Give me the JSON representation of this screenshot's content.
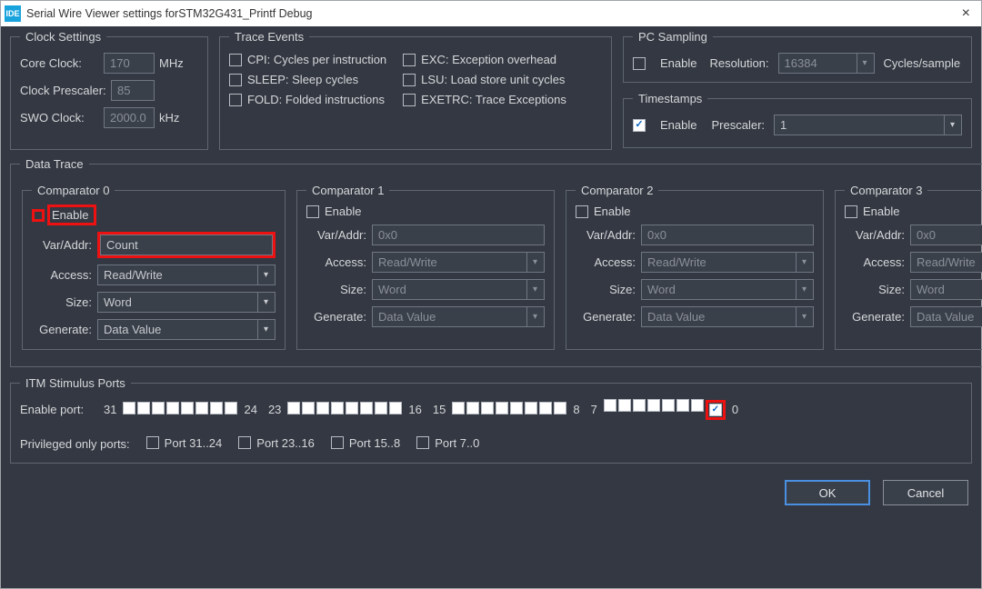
{
  "titlebar": {
    "icon": "IDE",
    "title": "Serial Wire Viewer settings forSTM32G431_Printf Debug"
  },
  "clock": {
    "legend": "Clock Settings",
    "core_label": "Core Clock:",
    "core_value": "170",
    "core_unit": "MHz",
    "presc_label": "Clock Prescaler:",
    "presc_value": "85",
    "swo_label": "SWO Clock:",
    "swo_value": "2000.0",
    "swo_unit": "kHz"
  },
  "trace": {
    "legend": "Trace Events",
    "cpi": "CPI: Cycles per instruction",
    "sleep": "SLEEP: Sleep cycles",
    "fold": "FOLD: Folded instructions",
    "exc": "EXC: Exception overhead",
    "lsu": "LSU: Load store unit cycles",
    "exetrc": "EXETRC: Trace Exceptions"
  },
  "pc": {
    "legend": "PC Sampling",
    "enable": "Enable",
    "res_label": "Resolution:",
    "res_value": "16384",
    "unit": "Cycles/sample"
  },
  "ts": {
    "legend": "Timestamps",
    "enable": "Enable",
    "enabled": true,
    "presc_label": "Prescaler:",
    "presc_value": "1"
  },
  "dt": {
    "legend": "Data Trace"
  },
  "comp_labels": {
    "enable": "Enable",
    "var": "Var/Addr:",
    "access": "Access:",
    "size": "Size:",
    "gen": "Generate:"
  },
  "comps": [
    {
      "title": "Comparator 0",
      "enabled": true,
      "var": "Count",
      "access": "Read/Write",
      "size": "Word",
      "gen": "Data Value"
    },
    {
      "title": "Comparator 1",
      "enabled": false,
      "var": "0x0",
      "access": "Read/Write",
      "size": "Word",
      "gen": "Data Value"
    },
    {
      "title": "Comparator 2",
      "enabled": false,
      "var": "0x0",
      "access": "Read/Write",
      "size": "Word",
      "gen": "Data Value"
    },
    {
      "title": "Comparator 3",
      "enabled": false,
      "var": "0x0",
      "access": "Read/Write",
      "size": "Word",
      "gen": "Data Value"
    }
  ],
  "itm": {
    "legend": "ITM Stimulus Ports",
    "enable_label": "Enable port:",
    "labels": {
      "g1s": "31",
      "g1e": "24",
      "g2s": "23",
      "g2e": "16",
      "g3s": "15",
      "g3e": "8",
      "g4s": "7",
      "g4e": "0"
    },
    "port0_checked": true,
    "priv_label": "Privileged only ports:",
    "priv_ports": [
      "Port 31..24",
      "Port 23..16",
      "Port 15..8",
      "Port 7..0"
    ]
  },
  "buttons": {
    "ok": "OK",
    "cancel": "Cancel"
  }
}
